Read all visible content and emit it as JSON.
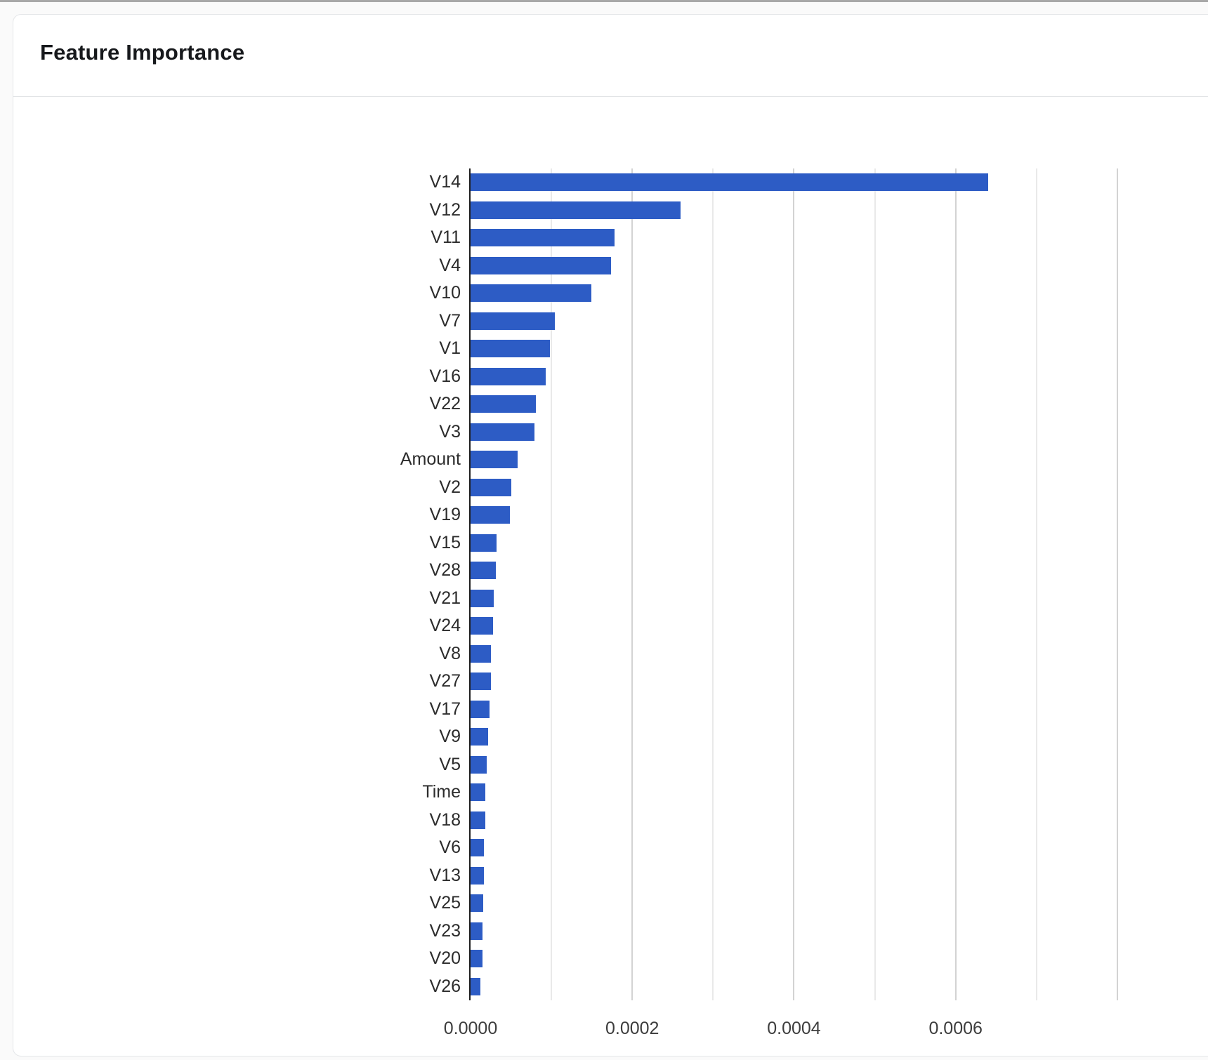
{
  "card": {
    "title": "Feature Importance"
  },
  "colors": {
    "bar": "#2d5cc5",
    "axis_line": "#1f1f1f",
    "gridline_minor": "#e9e9e9",
    "gridline_major": "#d3d3d3",
    "card_border": "#e4e6e9"
  },
  "chart_data": {
    "type": "bar",
    "orientation": "horizontal",
    "title": "Feature Importance",
    "xlabel": "",
    "ylabel": "",
    "grid": true,
    "legend": false,
    "categories": [
      "V14",
      "V12",
      "V11",
      "V4",
      "V10",
      "V7",
      "V1",
      "V16",
      "V22",
      "V3",
      "Amount",
      "V2",
      "V19",
      "V15",
      "V28",
      "V21",
      "V24",
      "V8",
      "V27",
      "V17",
      "V9",
      "V5",
      "Time",
      "V18",
      "V6",
      "V13",
      "V25",
      "V23",
      "V20",
      "V26"
    ],
    "values": [
      0.00064,
      0.00026,
      0.000178,
      0.000174,
      0.000149,
      0.000104,
      9.8e-05,
      9.3e-05,
      8.1e-05,
      7.9e-05,
      5.85e-05,
      5e-05,
      4.86e-05,
      3.2e-05,
      3.12e-05,
      2.9e-05,
      2.75e-05,
      2.55e-05,
      2.52e-05,
      2.37e-05,
      2.14e-05,
      2.02e-05,
      1.85e-05,
      1.8e-05,
      1.65e-05,
      1.63e-05,
      1.6e-05,
      1.47e-05,
      1.45e-05,
      1.25e-05
    ],
    "xlim": [
      0,
      0.000913
    ],
    "x_tick_values": [
      0.0,
      0.0002,
      0.0004,
      0.0006
    ],
    "x_tick_labels": [
      "0.0000",
      "0.0002",
      "0.0004",
      "0.0006"
    ],
    "gridline_values": [
      0.0001,
      0.0002,
      0.0003,
      0.0004,
      0.0005,
      0.0006,
      0.0007,
      0.0008
    ],
    "bar_color": "#2d5cc5"
  }
}
